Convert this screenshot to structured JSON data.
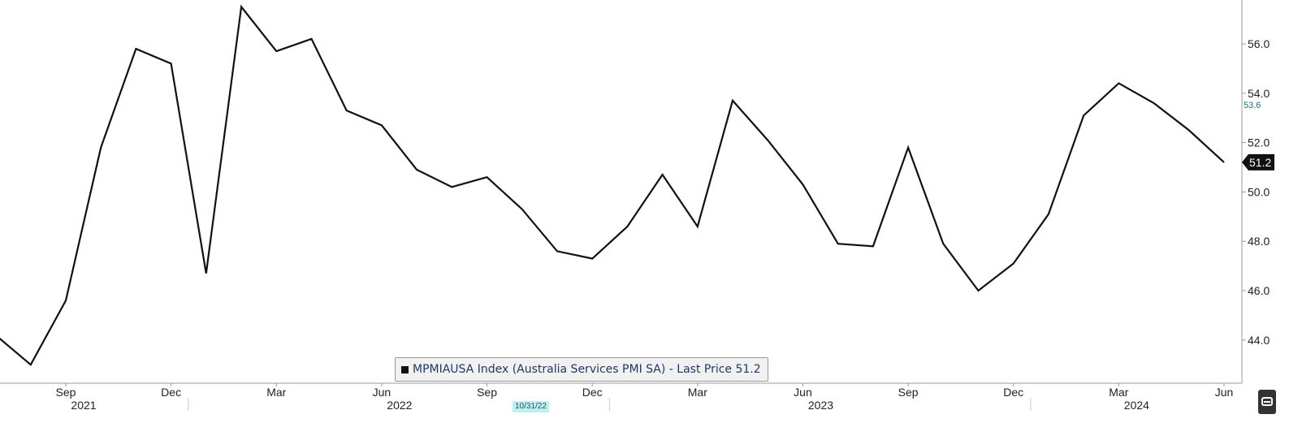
{
  "legend": {
    "text": "MPMIAUSA Index (Australia Services PMI SA) - Last Price 51.2"
  },
  "badges": {
    "date_marker": "10/31/22",
    "prev_value": "53.6",
    "last_value": "51.2"
  },
  "colors": {
    "line": "#111111",
    "badge_bg": "#bff0f0",
    "last_price_tag": "#111111"
  },
  "chart_data": {
    "type": "line",
    "title": "",
    "xlabel": "",
    "ylabel": "",
    "ylim": [
      42.8,
      58.5
    ],
    "yticks": [
      44.0,
      46.0,
      48.0,
      50.0,
      52.0,
      54.0,
      56.0
    ],
    "ytick_labels": [
      "44.0",
      "46.0",
      "48.0",
      "50.0",
      "52.0",
      "54.0",
      "56.0"
    ],
    "grid": false,
    "legend_position": "bottom-center",
    "x_ticks": [
      {
        "date": "2021-09",
        "label": "Sep",
        "year": "2021"
      },
      {
        "date": "2021-12",
        "label": "Dec",
        "year": ""
      },
      {
        "date": "2022-03",
        "label": "Mar",
        "year": ""
      },
      {
        "date": "2022-06",
        "label": "Jun",
        "year": "2022"
      },
      {
        "date": "2022-09",
        "label": "Sep",
        "year": ""
      },
      {
        "date": "2022-12",
        "label": "Dec",
        "year": ""
      },
      {
        "date": "2023-03",
        "label": "Mar",
        "year": ""
      },
      {
        "date": "2023-06",
        "label": "Jun",
        "year": "2023"
      },
      {
        "date": "2023-09",
        "label": "Sep",
        "year": ""
      },
      {
        "date": "2023-12",
        "label": "Dec",
        "year": ""
      },
      {
        "date": "2024-03",
        "label": "Mar",
        "year": "2024"
      },
      {
        "date": "2024-06",
        "label": "Jun",
        "year": ""
      }
    ],
    "series": [
      {
        "name": "MPMIAUSA Index (Australia Services PMI SA)",
        "x": [
          "2021-07",
          "2021-08",
          "2021-09",
          "2021-10",
          "2021-11",
          "2021-12",
          "2022-01",
          "2022-02",
          "2022-03",
          "2022-04",
          "2022-05",
          "2022-06",
          "2022-07",
          "2022-08",
          "2022-09",
          "2022-10",
          "2022-11",
          "2022-12",
          "2023-01",
          "2023-02",
          "2023-03",
          "2023-04",
          "2023-05",
          "2023-06",
          "2023-07",
          "2023-08",
          "2023-09",
          "2023-10",
          "2023-11",
          "2023-12",
          "2024-01",
          "2024-02",
          "2024-03",
          "2024-04",
          "2024-05",
          "2024-06"
        ],
        "values": [
          44.2,
          43.0,
          45.6,
          51.8,
          55.8,
          55.2,
          46.7,
          57.5,
          55.7,
          56.2,
          53.3,
          52.7,
          50.9,
          50.2,
          50.6,
          49.3,
          47.6,
          47.3,
          48.6,
          50.7,
          48.6,
          53.7,
          52.1,
          50.3,
          47.9,
          47.8,
          51.8,
          47.9,
          46.0,
          47.1,
          49.1,
          53.1,
          54.4,
          53.6,
          52.5,
          51.2
        ]
      }
    ]
  }
}
